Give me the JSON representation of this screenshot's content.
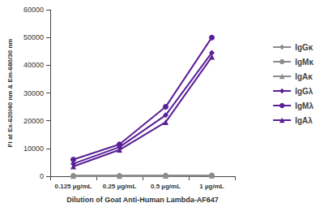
{
  "chart_data": {
    "type": "line",
    "x_label": "Dilution of Goat Anti-Human Lambda-AF647",
    "y_label": "FI at Ex-620/40 nm & Em-680/30 nm",
    "categories": [
      "0.125 µg/mL",
      "0.25 µg/mL",
      "0.5 µg/mL",
      "1 µg/mL"
    ],
    "series": [
      {
        "name": "IgGκ",
        "color": "#8c8c8c",
        "marker": "diamond",
        "values": [
          200,
          200,
          250,
          300
        ]
      },
      {
        "name": "IgMκ",
        "color": "#8c8c8c",
        "marker": "circle",
        "values": [
          150,
          150,
          200,
          250
        ]
      },
      {
        "name": "IgAκ",
        "color": "#8c8c8c",
        "marker": "triangle",
        "values": [
          100,
          100,
          150,
          200
        ]
      },
      {
        "name": "IgGλ",
        "color": "#5a1f96",
        "marker": "diamond",
        "values": [
          4500,
          10500,
          22000,
          44500
        ]
      },
      {
        "name": "IgMλ",
        "color": "#5a1f96",
        "marker": "circle",
        "values": [
          6000,
          11500,
          25000,
          50000
        ]
      },
      {
        "name": "IgAλ",
        "color": "#5a1f96",
        "marker": "triangle",
        "values": [
          3500,
          9500,
          19500,
          43000
        ]
      }
    ],
    "ylim": [
      0,
      60000
    ],
    "yticks": [
      0,
      10000,
      20000,
      30000,
      40000,
      50000,
      60000
    ],
    "grid": false,
    "legend": "right"
  }
}
